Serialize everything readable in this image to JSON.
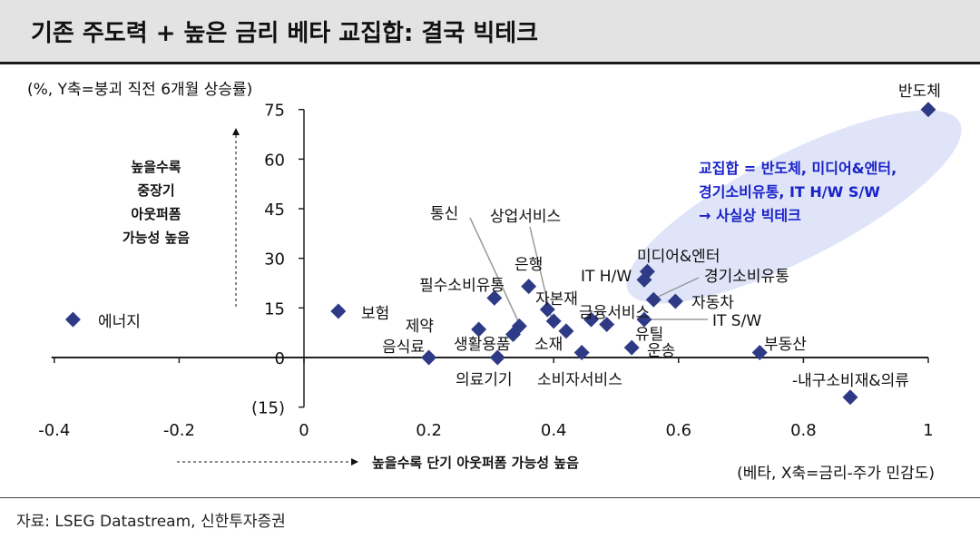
{
  "header": {
    "title": "기존 주도력 + 높은 금리 베타 교집합: 결국 빅테크"
  },
  "source": "자료: LSEG Datastream, 신한투자증권",
  "annotations": {
    "y_up_text": [
      "높을수록",
      "중장기",
      "아웃퍼폼",
      "가능성 높음"
    ],
    "x_right_text": "높을수록 단기 아웃퍼폼 가능성 높음",
    "highlight_text": [
      "교집합 = 반도체, 미디어&엔터,",
      "경기소비유통, IT H/W S/W",
      "→ 사실상 빅테크"
    ]
  },
  "colors": {
    "marker": "#2e3a86",
    "highlight_fill": "#dfe4f8",
    "highlight_text": "#1a22c8",
    "header_bg": "#e3e3e3"
  },
  "chart_data": {
    "type": "scatter",
    "title": "",
    "xlabel": "(베타, X축=금리-주가 민감도)",
    "ylabel": "(%, Y축=붕괴 직전 6개월 상승률)",
    "xlim": [
      -0.4,
      1.0
    ],
    "ylim": [
      -15,
      75
    ],
    "x_ticks": [
      "-0.4",
      "-0.2",
      "0",
      "0.2",
      "0.4",
      "0.6",
      "0.8",
      "1"
    ],
    "y_ticks": [
      "(15)",
      "0",
      "15",
      "30",
      "45",
      "60",
      "75"
    ],
    "grid": false,
    "points": [
      {
        "label": "반도체",
        "x": 1.0,
        "y": 75
      },
      {
        "label": "에너지",
        "x": -0.37,
        "y": 11.5
      },
      {
        "label": "보험",
        "x": 0.055,
        "y": 14
      },
      {
        "label": "음식료",
        "x": 0.2,
        "y": 0
      },
      {
        "label": "제약",
        "x": 0.28,
        "y": 8.5
      },
      {
        "label": "필수소비유통",
        "x": 0.305,
        "y": 18
      },
      {
        "label": "의료기기",
        "x": 0.31,
        "y": 0
      },
      {
        "label": "생활용품",
        "x": 0.335,
        "y": 7
      },
      {
        "label": "통신",
        "x": 0.345,
        "y": 9.5
      },
      {
        "label": "상업서비스",
        "x": 0.36,
        "y": 21.5
      },
      {
        "label": "은행",
        "x": 0.39,
        "y": 14.5
      },
      {
        "label": "자본재",
        "x": 0.4,
        "y": 11
      },
      {
        "label": "소재",
        "x": 0.42,
        "y": 8
      },
      {
        "label": "소비자서비스",
        "x": 0.445,
        "y": 1.5
      },
      {
        "label": "금융서비스",
        "x": 0.46,
        "y": 11.5
      },
      {
        "label": "유틸",
        "x": 0.485,
        "y": 10
      },
      {
        "label": "운송",
        "x": 0.525,
        "y": 3
      },
      {
        "label": "IT H/W",
        "x": 0.545,
        "y": 23.5
      },
      {
        "label": "미디어&엔터",
        "x": 0.55,
        "y": 26
      },
      {
        "label": "IT S/W",
        "x": 0.545,
        "y": 11.5
      },
      {
        "label": "경기소비유통",
        "x": 0.56,
        "y": 17.5
      },
      {
        "label": "자동차",
        "x": 0.595,
        "y": 17
      },
      {
        "label": "부동산",
        "x": 0.73,
        "y": 1.5
      },
      {
        "label": "내구소비재&의류",
        "x": 0.875,
        "y": -12
      }
    ]
  }
}
